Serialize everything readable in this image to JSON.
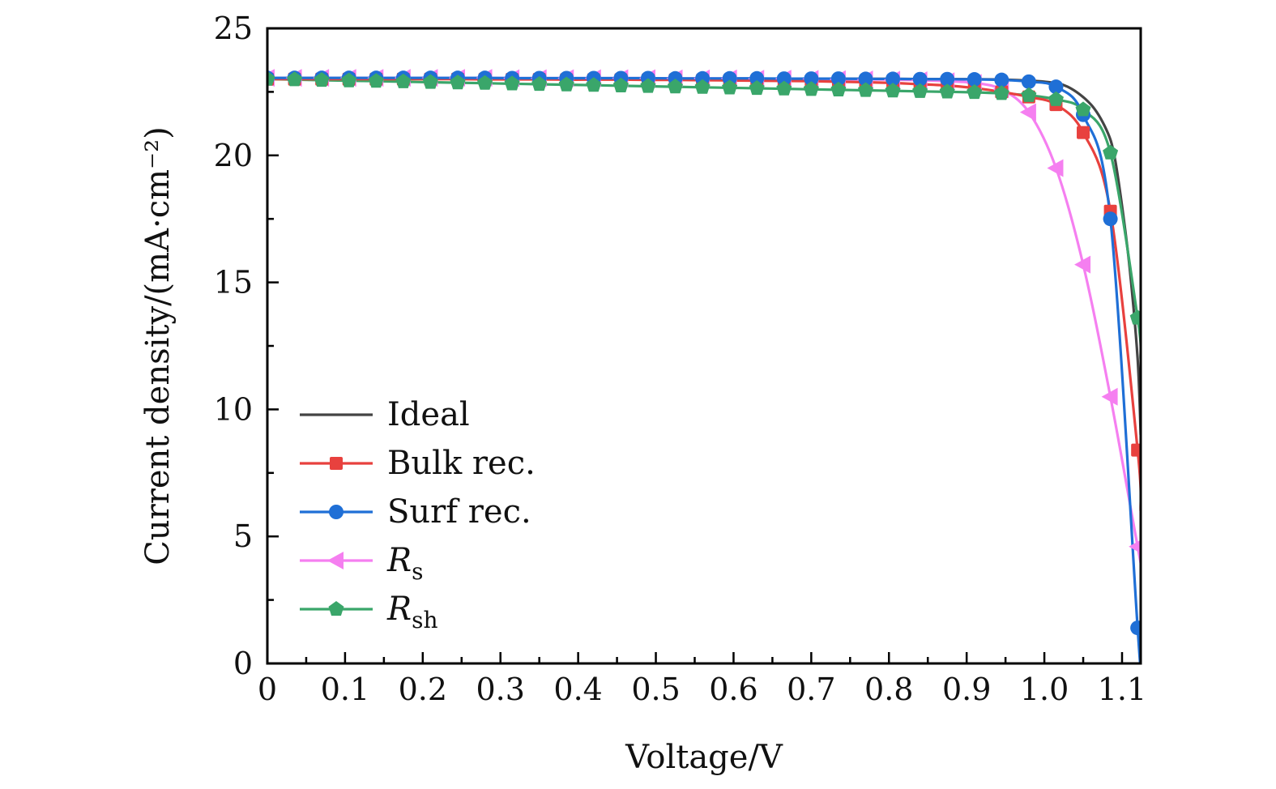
{
  "chart_data": {
    "type": "line",
    "title": "",
    "xlabel": "Voltage/V",
    "ylabel": "Current density/(mA·cm⁻²)",
    "xlim": [
      0,
      1.124
    ],
    "ylim": [
      0,
      25
    ],
    "xticks": [
      0,
      0.1,
      0.2,
      0.3,
      0.4,
      0.5,
      0.6,
      0.7,
      0.8,
      0.9,
      1.0,
      1.1
    ],
    "xtick_labels": [
      "0",
      "0.1",
      "0.2",
      "0.3",
      "0.4",
      "0.5",
      "0.6",
      "0.7",
      "0.8",
      "0.9",
      "1.0",
      "1.1"
    ],
    "yticks": [
      0,
      5,
      10,
      15,
      20,
      25
    ],
    "ytick_labels": [
      "0",
      "5",
      "10",
      "15",
      "20",
      "25"
    ],
    "grid": false,
    "legend_position": "lower-left",
    "legend": [
      {
        "key": "ideal",
        "main": "Ideal",
        "sub": "",
        "italic": false
      },
      {
        "key": "bulk",
        "main": "Bulk rec.",
        "sub": "",
        "italic": false
      },
      {
        "key": "surf",
        "main": "Surf rec.",
        "sub": "",
        "italic": false
      },
      {
        "key": "rs",
        "main": "R",
        "sub": "s",
        "italic": true
      },
      {
        "key": "rsh",
        "main": "R",
        "sub": "sh",
        "italic": true
      }
    ],
    "series": [
      {
        "name": "Ideal",
        "key": "ideal",
        "color": "#444444",
        "marker": "none",
        "curve": {
          "jsc": 23.05,
          "slope": 0.05,
          "v_knee": 1.126,
          "n_vt": 0.0215
        },
        "x": [
          0,
          0.2,
          0.4,
          0.6,
          0.8,
          0.9,
          0.95,
          1.0,
          1.03,
          1.06,
          1.08,
          1.09,
          1.1,
          1.11,
          1.12,
          1.124
        ],
        "y": [
          23.05,
          23.04,
          23.03,
          23.02,
          23.01,
          23.0,
          22.98,
          22.9,
          22.7,
          22.0,
          21.0,
          20.0,
          18.0,
          15.5,
          12.0,
          9.0
        ]
      },
      {
        "name": "Bulk rec.",
        "key": "bulk",
        "color": "#e8413e",
        "marker": "square",
        "x": [
          0,
          0.035,
          0.07,
          0.105,
          0.14,
          0.175,
          0.21,
          0.245,
          0.28,
          0.315,
          0.35,
          0.385,
          0.42,
          0.455,
          0.49,
          0.525,
          0.56,
          0.595,
          0.63,
          0.665,
          0.7,
          0.735,
          0.77,
          0.805,
          0.84,
          0.875,
          0.91,
          0.945,
          0.98,
          1.015,
          1.05,
          1.085,
          1.12,
          1.124
        ],
        "y": [
          23.0,
          23.0,
          23.0,
          23.0,
          23.0,
          23.0,
          23.0,
          23.0,
          22.99,
          22.99,
          22.99,
          22.98,
          22.98,
          22.98,
          22.97,
          22.97,
          22.96,
          22.95,
          22.94,
          22.93,
          22.92,
          22.9,
          22.88,
          22.85,
          22.8,
          22.75,
          22.65,
          22.5,
          22.3,
          22.0,
          20.9,
          17.8,
          8.4,
          6.0
        ]
      },
      {
        "name": "Surf rec.",
        "key": "surf",
        "color": "#1f6fd6",
        "marker": "circle",
        "x": [
          0,
          0.035,
          0.07,
          0.105,
          0.14,
          0.175,
          0.21,
          0.245,
          0.28,
          0.315,
          0.35,
          0.385,
          0.42,
          0.455,
          0.49,
          0.525,
          0.56,
          0.595,
          0.63,
          0.665,
          0.7,
          0.735,
          0.77,
          0.805,
          0.84,
          0.875,
          0.91,
          0.945,
          0.98,
          1.015,
          1.05,
          1.085,
          1.12,
          1.124
        ],
        "y": [
          23.05,
          23.05,
          23.05,
          23.05,
          23.05,
          23.05,
          23.05,
          23.05,
          23.05,
          23.04,
          23.04,
          23.04,
          23.04,
          23.04,
          23.04,
          23.03,
          23.03,
          23.03,
          23.03,
          23.02,
          23.02,
          23.02,
          23.01,
          23.01,
          23.0,
          23.0,
          22.99,
          22.97,
          22.9,
          22.7,
          21.6,
          17.5,
          1.4,
          0.0
        ]
      },
      {
        "name": "Rs",
        "key": "rs",
        "color": "#f57ff0",
        "marker": "triangle-left",
        "x": [
          0,
          0.035,
          0.07,
          0.105,
          0.14,
          0.175,
          0.21,
          0.245,
          0.28,
          0.315,
          0.35,
          0.385,
          0.42,
          0.455,
          0.49,
          0.525,
          0.56,
          0.595,
          0.63,
          0.665,
          0.7,
          0.735,
          0.77,
          0.805,
          0.84,
          0.875,
          0.91,
          0.945,
          0.98,
          1.015,
          1.05,
          1.085,
          1.12,
          1.124
        ],
        "y": [
          23.05,
          23.05,
          23.05,
          23.05,
          23.05,
          23.05,
          23.05,
          23.05,
          23.05,
          23.04,
          23.04,
          23.04,
          23.04,
          23.04,
          23.04,
          23.03,
          23.03,
          23.03,
          23.02,
          23.02,
          23.01,
          23.0,
          22.99,
          22.98,
          22.96,
          22.92,
          22.85,
          22.6,
          21.7,
          19.5,
          15.7,
          10.5,
          4.6,
          4.0
        ]
      },
      {
        "name": "Rsh",
        "key": "rsh",
        "color": "#3aa66a",
        "marker": "pentagon",
        "x": [
          0,
          0.035,
          0.07,
          0.105,
          0.14,
          0.175,
          0.21,
          0.245,
          0.28,
          0.315,
          0.35,
          0.385,
          0.42,
          0.455,
          0.49,
          0.525,
          0.56,
          0.595,
          0.63,
          0.665,
          0.7,
          0.735,
          0.77,
          0.805,
          0.84,
          0.875,
          0.91,
          0.945,
          0.98,
          1.015,
          1.05,
          1.085,
          1.12,
          1.124
        ],
        "y": [
          23.0,
          22.98,
          22.96,
          22.94,
          22.92,
          22.9,
          22.88,
          22.86,
          22.84,
          22.82,
          22.8,
          22.78,
          22.76,
          22.74,
          22.72,
          22.7,
          22.68,
          22.66,
          22.64,
          22.62,
          22.6,
          22.58,
          22.56,
          22.54,
          22.52,
          22.5,
          22.48,
          22.44,
          22.36,
          22.2,
          21.8,
          20.1,
          13.6,
          12.0
        ]
      }
    ]
  }
}
